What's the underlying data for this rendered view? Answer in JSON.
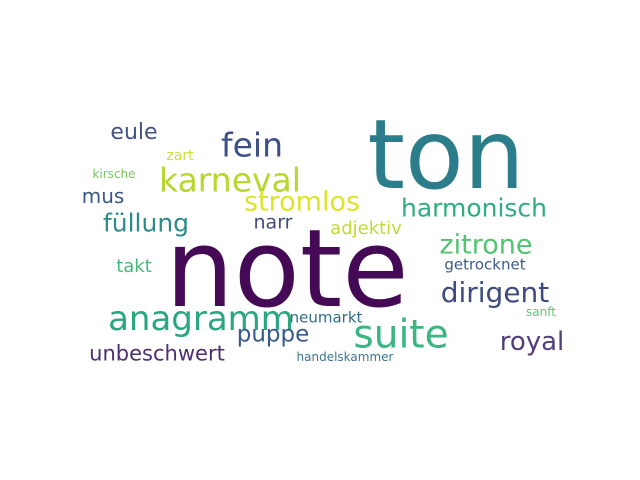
{
  "words": [
    {
      "text": "note",
      "color": "#440a55"
    },
    {
      "text": "ton",
      "color": "#2b7d8b"
    },
    {
      "text": "karneval",
      "color": "#b6d630"
    },
    {
      "text": "fein",
      "color": "#3d4f87"
    },
    {
      "text": "eule",
      "color": "#445383"
    },
    {
      "text": "zart",
      "color": "#c8df3c"
    },
    {
      "text": "kirsche",
      "color": "#7ac95c"
    },
    {
      "text": "mus",
      "color": "#38578a"
    },
    {
      "text": "stromlos",
      "color": "#dde52a"
    },
    {
      "text": "harmonisch",
      "color": "#2fac82"
    },
    {
      "text": "füllung",
      "color": "#2e8b8b"
    },
    {
      "text": "narr",
      "color": "#444b7c"
    },
    {
      "text": "adjektiv",
      "color": "#bfdb34"
    },
    {
      "text": "zitrone",
      "color": "#52c371"
    },
    {
      "text": "takt",
      "color": "#44b87a"
    },
    {
      "text": "getrocknet",
      "color": "#3f5a8a"
    },
    {
      "text": "dirigent",
      "color": "#3f4a7f"
    },
    {
      "text": "anagramm",
      "color": "#2aa781"
    },
    {
      "text": "neumarkt",
      "color": "#2f6e88"
    },
    {
      "text": "sanft",
      "color": "#55c877"
    },
    {
      "text": "suite",
      "color": "#3ab683"
    },
    {
      "text": "puppe",
      "color": "#385a8b"
    },
    {
      "text": "royal",
      "color": "#533d7b"
    },
    {
      "text": "unbeschwert",
      "color": "#4d2f6e"
    },
    {
      "text": "handelskammer",
      "color": "#3b7790"
    }
  ]
}
